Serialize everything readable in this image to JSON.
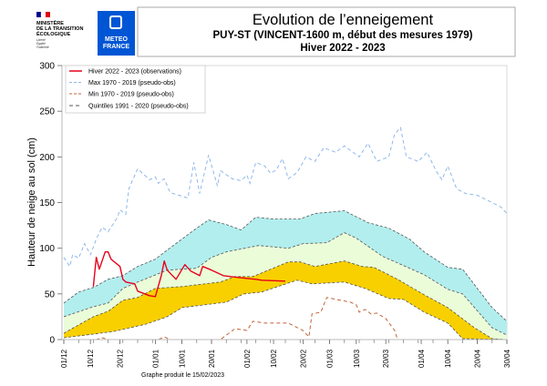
{
  "header": {
    "ministry_logo_text": "MINISTÈRE DE LA TRANSITION ÉCOLOGIQUE",
    "ministry_motto": "Liberté Égalité Fraternité",
    "meteo_logo_text": "METEO FRANCE",
    "title": "Evolution de l’enneigement",
    "subtitle": "PUY-ST (VINCENT-1600 m, début des mesures 1979)",
    "season": "Hiver 2022 - 2023"
  },
  "footer": "Graphe produit le 15/02/2023",
  "chart_data": {
    "type": "line",
    "ylabel": "Hauteur de neige au sol (cm)",
    "ylim": [
      0,
      300
    ],
    "yticks": [
      0,
      50,
      100,
      150,
      200,
      250,
      300
    ],
    "xticks": [
      "01/12",
      "10/12",
      "20/12",
      "01/01",
      "10/01",
      "20/01",
      "01/02",
      "10/02",
      "20/02",
      "01/03",
      "10/03",
      "20/03",
      "01/04",
      "10/04",
      "20/04",
      "30/04"
    ],
    "xlim": [
      "01/12",
      "30/04"
    ],
    "legend_position": "top-left",
    "colors": {
      "obs": "#e8001c",
      "max": "#8fb8ea",
      "min": "#c0663a",
      "quintiles": "#555555",
      "band_q60_q80": "#b2eeee",
      "band_q40_q60": "#ebfcd9",
      "band_q20_q40": "#f8d000"
    },
    "series": [
      {
        "name": "Hiver 2022 - 2023 (observations)",
        "key": "obs",
        "points": [
          [
            "11/12",
            58
          ],
          [
            "12/12",
            90
          ],
          [
            "13/12",
            77
          ],
          [
            "15/12",
            96
          ],
          [
            "16/12",
            96
          ],
          [
            "17/12",
            88
          ],
          [
            "20/12",
            80
          ],
          [
            "21/12",
            66
          ],
          [
            "22/12",
            63
          ],
          [
            "25/12",
            61
          ],
          [
            "26/12",
            53
          ],
          [
            "30/12",
            48
          ],
          [
            "01/01",
            47
          ],
          [
            "03/01",
            70
          ],
          [
            "04/01",
            86
          ],
          [
            "05/01",
            76
          ],
          [
            "08/01",
            66
          ],
          [
            "11/01",
            82
          ],
          [
            "13/01",
            75
          ],
          [
            "16/01",
            70
          ],
          [
            "17/01",
            80
          ],
          [
            "20/01",
            76
          ],
          [
            "24/01",
            70
          ],
          [
            "29/01",
            68
          ],
          [
            "04/02",
            66
          ],
          [
            "06/02",
            65
          ],
          [
            "14/02",
            64
          ]
        ]
      },
      {
        "name": "Max 1970 - 2019 (pseudo-obs)",
        "key": "max",
        "points": [
          [
            "01/12",
            90
          ],
          [
            "03/12",
            80
          ],
          [
            "04/12",
            93
          ],
          [
            "06/12",
            89
          ],
          [
            "08/12",
            105
          ],
          [
            "10/12",
            93
          ],
          [
            "12/12",
            110
          ],
          [
            "14/12",
            123
          ],
          [
            "16/12",
            118
          ],
          [
            "19/12",
            133
          ],
          [
            "20/12",
            142
          ],
          [
            "22/12",
            137
          ],
          [
            "23/12",
            165
          ],
          [
            "26/12",
            187
          ],
          [
            "30/12",
            175
          ],
          [
            "01/01",
            178
          ],
          [
            "02/01",
            171
          ],
          [
            "04/01",
            176
          ],
          [
            "06/01",
            161
          ],
          [
            "09/01",
            158
          ],
          [
            "12/01",
            155
          ],
          [
            "14/01",
            194
          ],
          [
            "16/01",
            160
          ],
          [
            "19/01",
            202
          ],
          [
            "22/01",
            168
          ],
          [
            "23/01",
            185
          ],
          [
            "27/01",
            176
          ],
          [
            "30/01",
            174
          ],
          [
            "01/02",
            180
          ],
          [
            "02/02",
            171
          ],
          [
            "04/02",
            194
          ],
          [
            "07/02",
            190
          ],
          [
            "09/02",
            182
          ],
          [
            "11/02",
            186
          ],
          [
            "13/02",
            198
          ],
          [
            "15/02",
            176
          ],
          [
            "18/02",
            183
          ],
          [
            "21/02",
            200
          ],
          [
            "24/02",
            195
          ],
          [
            "27/02",
            210
          ],
          [
            "03/03",
            205
          ],
          [
            "06/03",
            212
          ],
          [
            "11/03",
            200
          ],
          [
            "14/03",
            215
          ],
          [
            "17/03",
            195
          ],
          [
            "21/03",
            200
          ],
          [
            "23/03",
            225
          ],
          [
            "25/03",
            232
          ],
          [
            "27/03",
            200
          ],
          [
            "31/03",
            195
          ],
          [
            "03/04",
            205
          ],
          [
            "06/04",
            185
          ],
          [
            "08/04",
            175
          ],
          [
            "10/04",
            190
          ],
          [
            "13/04",
            165
          ],
          [
            "16/04",
            160
          ],
          [
            "20/04",
            158
          ],
          [
            "25/04",
            150
          ],
          [
            "28/04",
            145
          ],
          [
            "30/04",
            138
          ]
        ]
      },
      {
        "name": "Min 1970 - 2019 (pseudo-obs)",
        "key": "min",
        "points": [
          [
            "01/12",
            0
          ],
          [
            "12/12",
            0
          ],
          [
            "14/12",
            2
          ],
          [
            "16/12",
            0
          ],
          [
            "02/01",
            0
          ],
          [
            "04/01",
            3
          ],
          [
            "06/01",
            0
          ],
          [
            "23/01",
            0
          ],
          [
            "28/01",
            12
          ],
          [
            "01/02",
            10
          ],
          [
            "03/02",
            20
          ],
          [
            "07/02",
            18
          ],
          [
            "15/02",
            18
          ],
          [
            "20/02",
            10
          ],
          [
            "22/02",
            3
          ],
          [
            "23/02",
            28
          ],
          [
            "26/02",
            30
          ],
          [
            "28/02",
            46
          ],
          [
            "08/03",
            41
          ],
          [
            "10/03",
            38
          ],
          [
            "11/03",
            30
          ],
          [
            "13/03",
            33
          ],
          [
            "15/03",
            28
          ],
          [
            "17/03",
            29
          ],
          [
            "20/03",
            23
          ],
          [
            "23/03",
            10
          ],
          [
            "24/03",
            0
          ],
          [
            "30/04",
            0
          ]
        ]
      },
      {
        "name": "Quintiles 1991 - 2020 (pseudo-obs)",
        "key": "quintiles",
        "quintiles": {
          "q80": [
            [
              "01/12",
              40
            ],
            [
              "06/12",
              52
            ],
            [
              "11/12",
              57
            ],
            [
              "16/12",
              66
            ],
            [
              "21/12",
              70
            ],
            [
              "26/12",
              80
            ],
            [
              "01/01",
              88
            ],
            [
              "05/01",
              98
            ],
            [
              "10/01",
              110
            ],
            [
              "15/01",
              122
            ],
            [
              "19/01",
              131
            ],
            [
              "25/01",
              126
            ],
            [
              "30/01",
              120
            ],
            [
              "04/02",
              134
            ],
            [
              "10/02",
              132
            ],
            [
              "19/02",
              132
            ],
            [
              "24/02",
              138
            ],
            [
              "06/03",
              141
            ],
            [
              "14/03",
              128
            ],
            [
              "21/03",
              122
            ],
            [
              "28/03",
              110
            ],
            [
              "02/04",
              96
            ],
            [
              "10/04",
              79
            ],
            [
              "15/04",
              77
            ],
            [
              "25/04",
              35
            ],
            [
              "30/04",
              20
            ]
          ],
          "q60": [
            [
              "01/12",
              25
            ],
            [
              "11/12",
              36
            ],
            [
              "16/12",
              40
            ],
            [
              "21/12",
              56
            ],
            [
              "26/12",
              63
            ],
            [
              "05/01",
              76
            ],
            [
              "15/01",
              78
            ],
            [
              "20/01",
              90
            ],
            [
              "25/01",
              96
            ],
            [
              "05/02",
              103
            ],
            [
              "15/02",
              100
            ],
            [
              "20/02",
              105
            ],
            [
              "28/02",
              106
            ],
            [
              "06/03",
              117
            ],
            [
              "10/03",
              111
            ],
            [
              "19/03",
              91
            ],
            [
              "26/03",
              81
            ],
            [
              "02/04",
              71
            ],
            [
              "10/04",
              55
            ],
            [
              "15/04",
              50
            ],
            [
              "25/04",
              13
            ],
            [
              "30/04",
              5
            ]
          ],
          "q40": [
            [
              "01/12",
              7
            ],
            [
              "11/12",
              25
            ],
            [
              "16/12",
              31
            ],
            [
              "21/12",
              43
            ],
            [
              "26/12",
              46
            ],
            [
              "01/01",
              56
            ],
            [
              "10/01",
              58
            ],
            [
              "23/01",
              63
            ],
            [
              "28/01",
              69
            ],
            [
              "03/02",
              69
            ],
            [
              "15/02",
              85
            ],
            [
              "19/02",
              85
            ],
            [
              "24/02",
              80
            ],
            [
              "06/03",
              86
            ],
            [
              "12/03",
              80
            ],
            [
              "16/03",
              79
            ],
            [
              "24/03",
              66
            ],
            [
              "02/04",
              49
            ],
            [
              "10/04",
              35
            ],
            [
              "19/04",
              13
            ],
            [
              "25/04",
              1
            ],
            [
              "30/04",
              0
            ]
          ],
          "q20": [
            [
              "01/12",
              2
            ],
            [
              "11/12",
              6
            ],
            [
              "18/12",
              9
            ],
            [
              "29/12",
              17
            ],
            [
              "05/01",
              25
            ],
            [
              "10/01",
              35
            ],
            [
              "25/01",
              41
            ],
            [
              "31/01",
              50
            ],
            [
              "06/02",
              52
            ],
            [
              "16/02",
              63
            ],
            [
              "18/02",
              65
            ],
            [
              "23/02",
              61
            ],
            [
              "06/03",
              63
            ],
            [
              "13/03",
              56
            ],
            [
              "21/03",
              45
            ],
            [
              "26/03",
              44
            ],
            [
              "02/04",
              30
            ],
            [
              "10/04",
              18
            ],
            [
              "15/04",
              1
            ],
            [
              "30/04",
              0
            ]
          ]
        }
      }
    ]
  }
}
